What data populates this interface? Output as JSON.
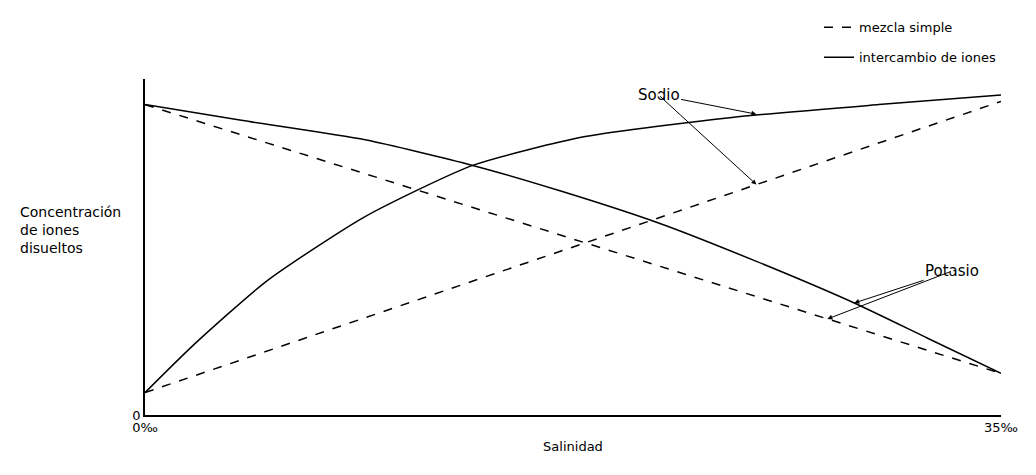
{
  "chart_data": {
    "type": "line",
    "x_label": "Salinidad",
    "y_label": "Concentración de iones disueltos",
    "xlim": [
      0,
      35
    ],
    "xticks": [
      {
        "value": 0,
        "label": "0‰"
      },
      {
        "value": 35,
        "label": "35‰"
      }
    ],
    "ylim": [
      0,
      105
    ],
    "yticks": [
      0
    ],
    "grid": false,
    "legend": "top right",
    "series": [
      {
        "name": "mezcla simple",
        "color": "#000000",
        "line_style": "dash",
        "x": [
          0,
          35
        ],
        "values": [
          7,
          98
        ]
      },
      {
        "name": "mezcla simple",
        "color": "#000000",
        "line_style": "dash",
        "x": [
          0,
          35
        ],
        "values": [
          97,
          13
        ]
      },
      {
        "name": "intercambio de iones",
        "color": "#000000",
        "line_style": "solid",
        "x": [
          0,
          2,
          5,
          9,
          13.4,
          18,
          24,
          30,
          35
        ],
        "values": [
          7,
          22,
          42,
          62,
          78,
          87,
          93,
          97,
          100
        ]
      },
      {
        "name": "intercambio de iones",
        "color": "#000000",
        "line_style": "solid",
        "x": [
          0,
          4,
          9,
          13.4,
          17,
          21,
          25,
          29,
          32,
          35
        ],
        "values": [
          97,
          92,
          86,
          78,
          70,
          60,
          48,
          35,
          24,
          13
        ]
      }
    ],
    "annotations": [
      {
        "text": "Sodio",
        "x": 21,
        "y": 100,
        "arrows": [
          [
            25,
            94
          ],
          [
            25,
            72
          ]
        ]
      },
      {
        "text": "Potasio",
        "x": 33,
        "y": 45,
        "arrows": [
          [
            29,
            35
          ],
          [
            27.9,
            30
          ]
        ]
      }
    ]
  }
}
